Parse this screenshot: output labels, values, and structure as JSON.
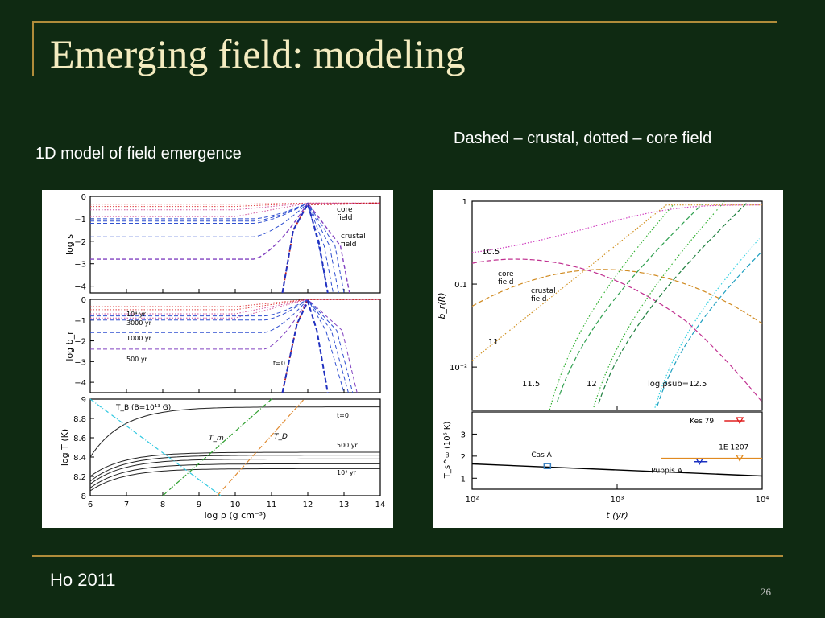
{
  "slide": {
    "title": "Emerging field: modeling",
    "subtitle_left": "1D model of field emergence",
    "subtitle_right": "Dashed – crustal, dotted – core field",
    "footer_left": "Ho 2011",
    "page_number": "26",
    "colors": {
      "background": "#0f2a12",
      "title": "#f4ecc0",
      "rule": "#b08c3a"
    }
  },
  "chart_data": [
    {
      "type": "line",
      "xlim": [
        6,
        14
      ],
      "ylim": [
        -4.3,
        0
      ],
      "ylabel": "log s",
      "y_ticks": [
        "0",
        "−1",
        "−2",
        "−3",
        "−4"
      ],
      "annotations": [
        "core\nfield",
        "crustal\nfield"
      ],
      "series": [
        {
          "style": "dotted core",
          "values": [
            [
              6,
              -0.45
            ],
            [
              10.5,
              -0.45
            ],
            [
              11.8,
              -0.35
            ],
            [
              14,
              -0.3
            ]
          ]
        },
        {
          "style": "dashed crustal",
          "values": [
            [
              6,
              -1.1
            ],
            [
              11.3,
              -1.1
            ],
            [
              12,
              -0.3
            ],
            [
              12.6,
              -4.3
            ]
          ]
        }
      ]
    },
    {
      "type": "line",
      "xlim": [
        6,
        14
      ],
      "ylim": [
        -4.5,
        0
      ],
      "ylabel": "log b_r",
      "y_ticks": [
        "0",
        "−1",
        "−2",
        "−3",
        "−4"
      ],
      "labels": [
        "10⁴ yr",
        "3000 yr",
        "1000 yr",
        "500 yr",
        "t=0"
      ]
    },
    {
      "type": "line",
      "xlim": [
        6,
        14
      ],
      "ylim": [
        8,
        9
      ],
      "xlabel": "log ρ  (g cm⁻³)",
      "ylabel": "log T (K)",
      "x_ticks": [
        "6",
        "7",
        "8",
        "9",
        "10",
        "11",
        "12",
        "13",
        "14"
      ],
      "y_ticks": [
        "8",
        "8.2",
        "8.4",
        "8.6",
        "8.8",
        "9"
      ],
      "labels": [
        "T_B (B=10¹³ G)",
        "T_m",
        "T_D",
        "t=0",
        "500 yr",
        "10⁴ yr"
      ]
    },
    {
      "type": "line",
      "xscale": "log",
      "xlim": [
        100,
        10000
      ],
      "yscale": "log",
      "ylim": [
        0.003,
        1
      ],
      "ylabel": "b_r(R)",
      "y_ticks": [
        "1",
        "0.1",
        "10⁻²"
      ],
      "labels": [
        "10.5",
        "core\nfield",
        "crustal\nfield",
        "11",
        "11.5",
        "12",
        "log ρsub=12.5"
      ]
    },
    {
      "type": "scatter",
      "xscale": "log",
      "xlim": [
        100,
        10000
      ],
      "ylim": [
        0.5,
        4
      ],
      "xlabel": "t  (yr)",
      "ylabel": "T_s^∞  (10⁶ K)",
      "x_ticks": [
        "10²",
        "10³",
        "10⁴"
      ],
      "y_ticks": [
        "1",
        "2",
        "3"
      ],
      "points": [
        {
          "name": "Cas A",
          "x": 330,
          "y": 1.55
        },
        {
          "name": "Puppis A",
          "x": 3700,
          "y": 1.75
        },
        {
          "name": "1E 1207",
          "x": 7000,
          "y": 1.9
        },
        {
          "name": "Kes 79",
          "x": 7000,
          "y": 3.6
        }
      ]
    }
  ]
}
